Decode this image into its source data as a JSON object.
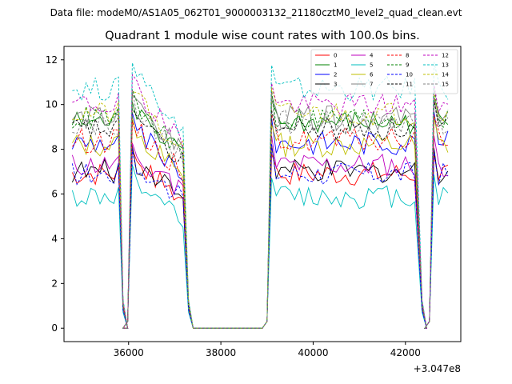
{
  "chart_data": {
    "type": "line",
    "suptitle": "Data file: modeM0/AS1A05_062T01_9000003132_21180cztM0_level2_quad_clean.evt",
    "title": "Quadrant 1 module wise count rates with 100.0s bins.",
    "xlabel": "",
    "ylabel": "",
    "x_offset_label": "+3.047e8",
    "xlim": [
      34600,
      43200
    ],
    "ylim": [
      -0.6,
      12.6
    ],
    "x_ticks": [
      36000,
      38000,
      40000,
      42000
    ],
    "x_tick_labels": [
      "36000",
      "38000",
      "40000",
      "42000"
    ],
    "y_ticks": [
      0,
      2,
      4,
      6,
      8,
      10,
      12
    ],
    "y_tick_labels": [
      "0",
      "2",
      "4",
      "6",
      "8",
      "10",
      "12"
    ],
    "legend_position": "upper right",
    "grid": false,
    "segments": [
      {
        "start": 34780,
        "end": 35780
      },
      {
        "start": 36080,
        "end": 37200
      },
      {
        "start": 39100,
        "end": 42260
      },
      {
        "start": 42620,
        "end": 43000
      }
    ],
    "series": [
      {
        "name": "0",
        "color": "#ff0000",
        "dash": "solid",
        "level": 6.9
      },
      {
        "name": "1",
        "color": "#008000",
        "dash": "solid",
        "level": 9.2
      },
      {
        "name": "2",
        "color": "#0000ff",
        "dash": "solid",
        "level": 8.3
      },
      {
        "name": "3",
        "color": "#000000",
        "dash": "solid",
        "level": 7.0
      },
      {
        "name": "4",
        "color": "#bf00bf",
        "dash": "solid",
        "level": 7.3
      },
      {
        "name": "5",
        "color": "#00bfbf",
        "dash": "solid",
        "level": 5.9
      },
      {
        "name": "6",
        "color": "#bfbf00",
        "dash": "solid",
        "level": 8.2
      },
      {
        "name": "7",
        "color": "#808080",
        "dash": "solid",
        "level": 9.4
      },
      {
        "name": "8",
        "color": "#ff0000",
        "dash": "dashed",
        "level": 8.4
      },
      {
        "name": "9",
        "color": "#008000",
        "dash": "dashed",
        "level": 9.4
      },
      {
        "name": "10",
        "color": "#0000ff",
        "dash": "dashed",
        "level": 6.9
      },
      {
        "name": "11",
        "color": "#000000",
        "dash": "dashed",
        "level": 8.9
      },
      {
        "name": "12",
        "color": "#bf00bf",
        "dash": "dashed",
        "level": 10.0
      },
      {
        "name": "13",
        "color": "#00bfbf",
        "dash": "dashed",
        "level": 10.7
      },
      {
        "name": "14",
        "color": "#bfbf00",
        "dash": "dashed",
        "level": 9.6
      },
      {
        "name": "15",
        "color": "#808080",
        "dash": "dashed",
        "level": 9.2
      }
    ]
  }
}
